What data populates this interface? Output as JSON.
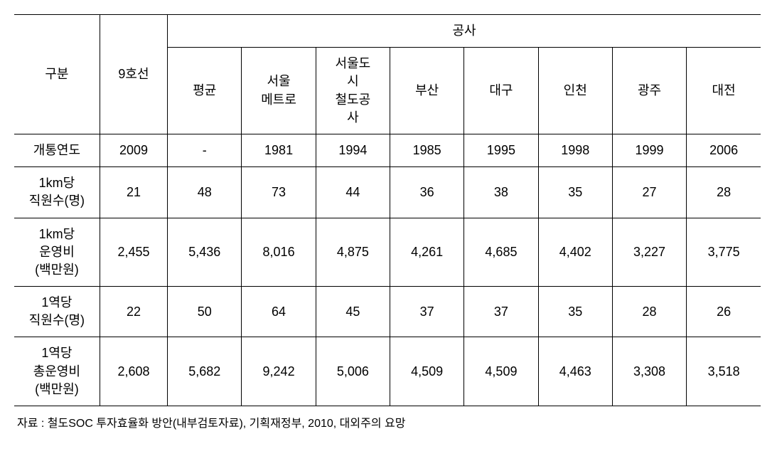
{
  "table": {
    "headers": {
      "category": "구분",
      "line9": "9호선",
      "corp_group": "공사",
      "cols": [
        "평균",
        "서울\n메트로",
        "서울도\n시\n철도공\n사",
        "부산",
        "대구",
        "인천",
        "광주",
        "대전"
      ]
    },
    "rows": [
      {
        "label": "개통연도",
        "line9": "2009",
        "vals": [
          "-",
          "1981",
          "1994",
          "1985",
          "1995",
          "1998",
          "1999",
          "2006"
        ]
      },
      {
        "label": "1km당\n직원수(명)",
        "line9": "21",
        "vals": [
          "48",
          "73",
          "44",
          "36",
          "38",
          "35",
          "27",
          "28"
        ]
      },
      {
        "label": "1km당\n운영비\n(백만원)",
        "line9": "2,455",
        "vals": [
          "5,436",
          "8,016",
          "4,875",
          "4,261",
          "4,685",
          "4,402",
          "3,227",
          "3,775"
        ]
      },
      {
        "label": "1역당\n직원수(명)",
        "line9": "22",
        "vals": [
          "50",
          "64",
          "45",
          "37",
          "37",
          "35",
          "28",
          "26"
        ]
      },
      {
        "label": "1역당\n총운영비\n(백만원)",
        "line9": "2,608",
        "vals": [
          "5,682",
          "9,242",
          "5,006",
          "4,509",
          "4,509",
          "4,463",
          "3,308",
          "3,518"
        ]
      }
    ]
  },
  "footnote": "자료 : 철도SOC 투자효율화 방안(내부검토자료), 기획재정부, 2010,   대외주의 요망",
  "style": {
    "font_size_cell": 18,
    "font_size_footnote": 16,
    "border_color": "#000000",
    "background_color": "#ffffff"
  }
}
